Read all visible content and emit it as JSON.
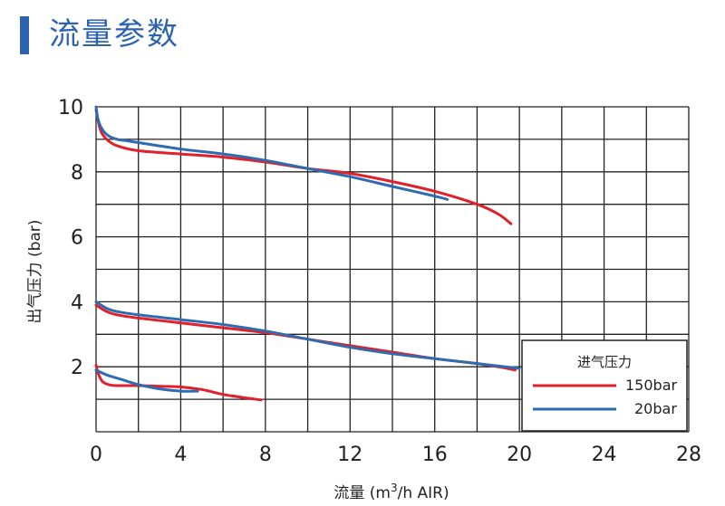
{
  "header": {
    "title": "流量参数"
  },
  "chart_data": {
    "type": "line",
    "xlabel": "流量 (m3/h AIR)",
    "xlabel_parts": {
      "before": "流量 (m",
      "sup": "3",
      "after": "/h AIR)"
    },
    "ylabel": "出气压力 (bar)",
    "xlim": [
      0,
      28
    ],
    "ylim": [
      0,
      10
    ],
    "xticks": [
      0,
      4,
      8,
      12,
      16,
      20,
      24,
      28
    ],
    "yticks": [
      2,
      4,
      6,
      8,
      10
    ],
    "x_gridlines": [
      0,
      2,
      4,
      6,
      8,
      10,
      12,
      14,
      16,
      18,
      20,
      22,
      24,
      26,
      28
    ],
    "y_gridlines": [
      0,
      1,
      2,
      3,
      4,
      5,
      6,
      7,
      8,
      9,
      10
    ],
    "grid": true,
    "legend": {
      "title": "进气压力",
      "placement": "bottom-right",
      "entries": [
        {
          "label": "150bar",
          "color": "#e0202a"
        },
        {
          "label": "20bar",
          "color": "#2f6bb0"
        }
      ]
    },
    "series": [
      {
        "name": "150bar",
        "color": "#e0202a",
        "x": [
          0,
          0.2,
          0.5,
          1,
          2,
          4,
          6,
          8,
          10,
          12,
          14,
          16,
          18,
          19,
          19.6
        ],
        "y": [
          9.9,
          9.3,
          9.0,
          8.8,
          8.65,
          8.55,
          8.45,
          8.3,
          8.1,
          7.95,
          7.7,
          7.4,
          7.0,
          6.7,
          6.4
        ]
      },
      {
        "name": "20bar",
        "color": "#2f6bb0",
        "x": [
          0,
          0.1,
          0.3,
          0.6,
          1,
          1.5,
          2,
          4,
          6,
          8,
          10,
          12,
          14,
          16,
          16.6
        ],
        "y": [
          10.0,
          9.6,
          9.3,
          9.1,
          9.0,
          8.95,
          8.9,
          8.7,
          8.55,
          8.35,
          8.1,
          7.85,
          7.55,
          7.25,
          7.15
        ]
      },
      {
        "name": "150bar",
        "color": "#e0202a",
        "x": [
          0,
          0.5,
          1,
          2,
          4,
          6,
          8,
          10,
          12,
          14,
          16,
          18,
          19,
          19.8
        ],
        "y": [
          3.9,
          3.7,
          3.6,
          3.5,
          3.35,
          3.2,
          3.05,
          2.85,
          2.65,
          2.45,
          2.25,
          2.1,
          2.0,
          1.9
        ]
      },
      {
        "name": "20bar",
        "color": "#2f6bb0",
        "x": [
          0,
          0.5,
          1,
          2,
          4,
          6,
          8,
          10,
          12,
          14,
          16,
          18,
          20
        ],
        "y": [
          4.0,
          3.8,
          3.7,
          3.6,
          3.45,
          3.3,
          3.1,
          2.85,
          2.6,
          2.4,
          2.25,
          2.1,
          1.95
        ]
      },
      {
        "name": "150bar",
        "color": "#e0202a",
        "x": [
          0,
          0.1,
          0.3,
          0.6,
          1,
          2,
          3,
          4,
          5,
          6,
          7,
          7.8
        ],
        "y": [
          2.05,
          1.8,
          1.55,
          1.45,
          1.42,
          1.42,
          1.4,
          1.38,
          1.3,
          1.15,
          1.05,
          0.98
        ]
      },
      {
        "name": "20bar",
        "color": "#2f6bb0",
        "x": [
          0,
          0.5,
          1,
          1.5,
          2,
          3,
          4,
          4.8
        ],
        "y": [
          1.9,
          1.75,
          1.65,
          1.55,
          1.45,
          1.32,
          1.25,
          1.25
        ]
      }
    ]
  }
}
